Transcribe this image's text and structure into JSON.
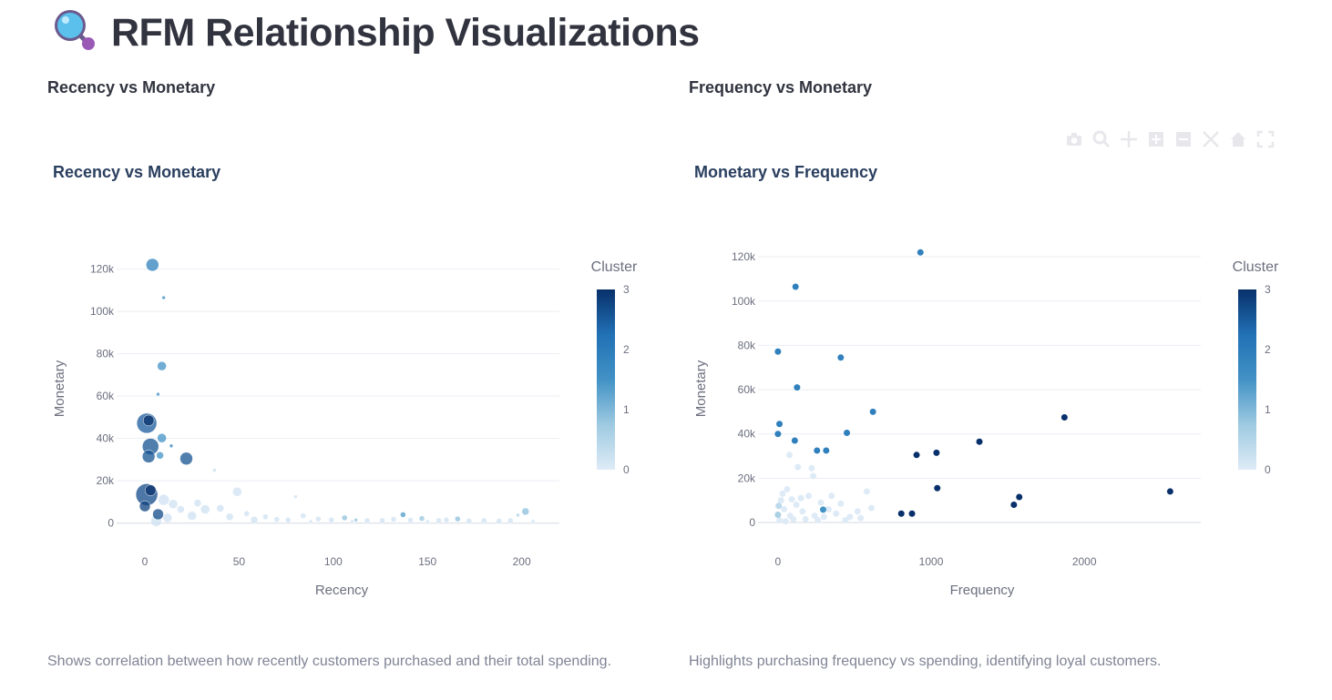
{
  "page": {
    "title": "RFM Relationship Visualizations",
    "title_icon": "magnifying-glass-icon"
  },
  "sections": [
    {
      "heading": "Recency vs Monetary",
      "caption": "Shows correlation between how recently customers purchased and their total spending."
    },
    {
      "heading": "Frequency vs Monetary",
      "caption": "Highlights purchasing frequency vs spending, identifying loyal customers."
    }
  ],
  "toolbar": {
    "icons": [
      "camera-icon",
      "zoom-icon",
      "pan-icon",
      "zoom-in-icon",
      "zoom-out-icon",
      "autoscale-icon",
      "reset-axes-icon",
      "fullscreen-icon"
    ]
  },
  "colorscale": [
    "#deebf7",
    "#9ecae1",
    "#4292c6",
    "#2171b5",
    "#08306b"
  ],
  "chart_data": [
    {
      "type": "scatter",
      "title": "Recency vs Monetary",
      "xlabel": "Recency",
      "ylabel": "Monetary",
      "xlim": [
        -15,
        220
      ],
      "ylim": [
        -7000,
        128000
      ],
      "x_ticks": [
        0,
        50,
        100,
        150,
        200
      ],
      "x_tick_labels": [
        "0",
        "50",
        "100",
        "150",
        "200"
      ],
      "y_ticks": [
        0,
        20000,
        40000,
        60000,
        80000,
        100000,
        120000
      ],
      "y_tick_labels": [
        "0",
        "20k",
        "40k",
        "60k",
        "80k",
        "100k",
        "120k"
      ],
      "grid": true,
      "colorbar": {
        "title": "Cluster",
        "range": [
          0,
          3
        ],
        "ticks": [
          "0",
          "1",
          "2",
          "3"
        ]
      },
      "marker_size_by": "Frequency",
      "points": [
        {
          "x": 4,
          "y": 122000,
          "c": 1.9,
          "s": 7
        },
        {
          "x": 10,
          "y": 106500,
          "c": 1.6,
          "s": 2
        },
        {
          "x": 9,
          "y": 74200,
          "c": 1.5,
          "s": 5
        },
        {
          "x": 7,
          "y": 60900,
          "c": 1.6,
          "s": 2
        },
        {
          "x": 1,
          "y": 47200,
          "c": 2.5,
          "s": 11
        },
        {
          "x": 2,
          "y": 48500,
          "c": 3,
          "s": 6
        },
        {
          "x": 9,
          "y": 40200,
          "c": 1.5,
          "s": 5
        },
        {
          "x": 14,
          "y": 36500,
          "c": 1.9,
          "s": 2
        },
        {
          "x": 3,
          "y": 36200,
          "c": 2.6,
          "s": 9
        },
        {
          "x": 2,
          "y": 31500,
          "c": 2.6,
          "s": 7
        },
        {
          "x": 8,
          "y": 32000,
          "c": 1.5,
          "s": 4
        },
        {
          "x": 22,
          "y": 30500,
          "c": 2.6,
          "s": 7
        },
        {
          "x": 1,
          "y": 13500,
          "c": 2.7,
          "s": 12
        },
        {
          "x": 3,
          "y": 15500,
          "c": 3,
          "s": 6
        },
        {
          "x": 0,
          "y": 8000,
          "c": 2.8,
          "s": 6
        },
        {
          "x": 7,
          "y": 4200,
          "c": 2.7,
          "s": 6
        },
        {
          "x": 37,
          "y": 25000,
          "c": 0.3,
          "s": 2
        },
        {
          "x": 49,
          "y": 14800,
          "c": 0.2,
          "s": 5
        },
        {
          "x": 80,
          "y": 12500,
          "c": 0.2,
          "s": 2
        },
        {
          "x": 137,
          "y": 4000,
          "c": 1.4,
          "s": 3
        },
        {
          "x": 202,
          "y": 5500,
          "c": 0.9,
          "s": 4
        },
        {
          "x": 198,
          "y": 3800,
          "c": 0.6,
          "s": 2
        },
        {
          "x": 106,
          "y": 2500,
          "c": 0.9,
          "s": 3
        },
        {
          "x": 147,
          "y": 2200,
          "c": 0.8,
          "s": 3
        },
        {
          "x": 112,
          "y": 1500,
          "c": 0.9,
          "s": 2
        },
        {
          "x": 166,
          "y": 2000,
          "c": 0.9,
          "s": 3
        },
        {
          "x": 15,
          "y": 9000,
          "c": 0.2,
          "s": 5
        },
        {
          "x": 19,
          "y": 6500,
          "c": 0.2,
          "s": 4
        },
        {
          "x": 25,
          "y": 3500,
          "c": 0.2,
          "s": 5
        },
        {
          "x": 32,
          "y": 6500,
          "c": 0.2,
          "s": 5
        },
        {
          "x": 45,
          "y": 3000,
          "c": 0.2,
          "s": 4
        },
        {
          "x": 58,
          "y": 1500,
          "c": 0.2,
          "s": 4
        },
        {
          "x": 64,
          "y": 3000,
          "c": 0.2,
          "s": 3
        },
        {
          "x": 70,
          "y": 1800,
          "c": 0.2,
          "s": 3
        },
        {
          "x": 76,
          "y": 1500,
          "c": 0.2,
          "s": 3
        },
        {
          "x": 84,
          "y": 3500,
          "c": 0.2,
          "s": 3
        },
        {
          "x": 92,
          "y": 2000,
          "c": 0.2,
          "s": 3
        },
        {
          "x": 99,
          "y": 1500,
          "c": 0.2,
          "s": 3
        },
        {
          "x": 118,
          "y": 1200,
          "c": 0.2,
          "s": 3
        },
        {
          "x": 126,
          "y": 1200,
          "c": 0.2,
          "s": 3
        },
        {
          "x": 132,
          "y": 1800,
          "c": 0.2,
          "s": 3
        },
        {
          "x": 141,
          "y": 1400,
          "c": 0.2,
          "s": 3
        },
        {
          "x": 156,
          "y": 1200,
          "c": 0.2,
          "s": 3
        },
        {
          "x": 160,
          "y": 1500,
          "c": 0.2,
          "s": 3
        },
        {
          "x": 172,
          "y": 1000,
          "c": 0.2,
          "s": 3
        },
        {
          "x": 180,
          "y": 1200,
          "c": 0.2,
          "s": 3
        },
        {
          "x": 188,
          "y": 1000,
          "c": 0.2,
          "s": 3
        },
        {
          "x": 194,
          "y": 1200,
          "c": 0.2,
          "s": 3
        },
        {
          "x": 28,
          "y": 9500,
          "c": 0.2,
          "s": 4
        },
        {
          "x": 10,
          "y": 11000,
          "c": 0.2,
          "s": 6
        },
        {
          "x": 6,
          "y": 1000,
          "c": 0.2,
          "s": 6
        },
        {
          "x": 12,
          "y": 2500,
          "c": 0.2,
          "s": 5
        },
        {
          "x": 40,
          "y": 7000,
          "c": 0.2,
          "s": 4
        },
        {
          "x": 54,
          "y": 4500,
          "c": 0.2,
          "s": 3
        },
        {
          "x": 88,
          "y": 800,
          "c": 0.2,
          "s": 2
        },
        {
          "x": 150,
          "y": 800,
          "c": 0.2,
          "s": 2
        },
        {
          "x": 110,
          "y": 800,
          "c": 0.2,
          "s": 2
        },
        {
          "x": 206,
          "y": 900,
          "c": 0.2,
          "s": 2
        }
      ]
    },
    {
      "type": "scatter",
      "title": "Monetary vs Frequency",
      "xlabel": "Frequency",
      "ylabel": "Monetary",
      "xlim": [
        -130,
        2760
      ],
      "ylim": [
        -7000,
        125000
      ],
      "x_ticks": [
        0,
        1000,
        2000
      ],
      "x_tick_labels": [
        "0",
        "1000",
        "2000"
      ],
      "y_ticks": [
        0,
        20000,
        40000,
        60000,
        80000,
        100000,
        120000
      ],
      "y_tick_labels": [
        "0",
        "20k",
        "40k",
        "60k",
        "80k",
        "100k",
        "120k"
      ],
      "grid": true,
      "colorbar": {
        "title": "Cluster",
        "range": [
          0,
          3
        ],
        "ticks": [
          "0",
          "1",
          "2",
          "3"
        ]
      },
      "points": [
        {
          "x": 930,
          "y": 122000,
          "c": 1.9
        },
        {
          "x": 115,
          "y": 106500,
          "c": 1.9
        },
        {
          "x": 0,
          "y": 77200,
          "c": 1.9
        },
        {
          "x": 410,
          "y": 74500,
          "c": 1.9
        },
        {
          "x": 125,
          "y": 61000,
          "c": 1.9
        },
        {
          "x": 620,
          "y": 50000,
          "c": 1.9
        },
        {
          "x": 10,
          "y": 44500,
          "c": 1.9
        },
        {
          "x": 0,
          "y": 40000,
          "c": 1.9
        },
        {
          "x": 450,
          "y": 40500,
          "c": 1.9
        },
        {
          "x": 110,
          "y": 37000,
          "c": 1.9
        },
        {
          "x": 255,
          "y": 32500,
          "c": 1.9
        },
        {
          "x": 315,
          "y": 32500,
          "c": 1.9
        },
        {
          "x": 295,
          "y": 5800,
          "c": 1.5
        },
        {
          "x": 905,
          "y": 30500,
          "c": 3
        },
        {
          "x": 1035,
          "y": 31500,
          "c": 3
        },
        {
          "x": 1315,
          "y": 36500,
          "c": 3
        },
        {
          "x": 1870,
          "y": 47500,
          "c": 3
        },
        {
          "x": 1040,
          "y": 15500,
          "c": 3
        },
        {
          "x": 2560,
          "y": 14000,
          "c": 3
        },
        {
          "x": 1575,
          "y": 11500,
          "c": 3
        },
        {
          "x": 1540,
          "y": 8000,
          "c": 3
        },
        {
          "x": 805,
          "y": 4000,
          "c": 3
        },
        {
          "x": 875,
          "y": 4000,
          "c": 3
        },
        {
          "x": 60,
          "y": 15000,
          "c": 0
        },
        {
          "x": 130,
          "y": 25000,
          "c": 0
        },
        {
          "x": 220,
          "y": 24500,
          "c": 0
        },
        {
          "x": 230,
          "y": 21000,
          "c": 0
        },
        {
          "x": 75,
          "y": 30500,
          "c": 0
        },
        {
          "x": 20,
          "y": 10000,
          "c": 0
        },
        {
          "x": 40,
          "y": 6000,
          "c": 0
        },
        {
          "x": 80,
          "y": 3000,
          "c": 0
        },
        {
          "x": 120,
          "y": 8000,
          "c": 0
        },
        {
          "x": 160,
          "y": 5000,
          "c": 0
        },
        {
          "x": 200,
          "y": 12000,
          "c": 0
        },
        {
          "x": 240,
          "y": 3000,
          "c": 0
        },
        {
          "x": 280,
          "y": 9000,
          "c": 0
        },
        {
          "x": 330,
          "y": 6000,
          "c": 0
        },
        {
          "x": 380,
          "y": 4000,
          "c": 0
        },
        {
          "x": 410,
          "y": 8500,
          "c": 0
        },
        {
          "x": 470,
          "y": 2500,
          "c": 0
        },
        {
          "x": 520,
          "y": 5000,
          "c": 0
        },
        {
          "x": 580,
          "y": 14000,
          "c": 0
        },
        {
          "x": 610,
          "y": 6500,
          "c": 0
        },
        {
          "x": 540,
          "y": 2000,
          "c": 0
        },
        {
          "x": 10,
          "y": 1000,
          "c": 0
        },
        {
          "x": 50,
          "y": 500,
          "c": 0
        },
        {
          "x": 100,
          "y": 1500,
          "c": 0
        },
        {
          "x": 150,
          "y": 11000,
          "c": 0
        },
        {
          "x": 180,
          "y": 1500,
          "c": 0
        },
        {
          "x": 260,
          "y": 1000,
          "c": 0
        },
        {
          "x": 30,
          "y": 13000,
          "c": 0
        },
        {
          "x": 90,
          "y": 10500,
          "c": 0
        },
        {
          "x": 300,
          "y": 2500,
          "c": 0
        },
        {
          "x": 350,
          "y": 12000,
          "c": 0
        },
        {
          "x": 440,
          "y": 1000,
          "c": 0
        },
        {
          "x": 0,
          "y": 3500,
          "c": 0.6
        },
        {
          "x": 5,
          "y": 7500,
          "c": 0.4
        }
      ]
    }
  ]
}
